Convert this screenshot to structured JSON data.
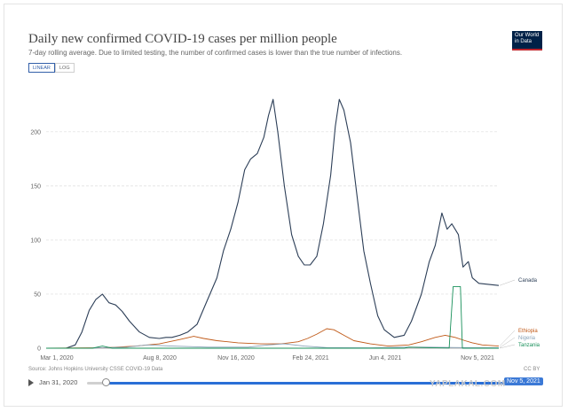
{
  "title": "Daily new confirmed COVID-19 cases per million people",
  "subtitle": "7-day rolling average. Due to limited testing, the number of confirmed cases is lower than the true number of infections.",
  "logo_text": [
    "Our World",
    "in Data"
  ],
  "toggles": {
    "linear": "LINEAR",
    "log": "LOG",
    "active": "linear"
  },
  "source": "Source: Johns Hopkins University CSSE COVID-19 Data",
  "license": "CC BY",
  "timeline": {
    "start": "Jan 31, 2020",
    "end": "Nov 5, 2021"
  },
  "watermark": "YAPLAKAL.COM",
  "colors": {
    "Canada": "#2c3e57",
    "Ethiopia": "#c05917",
    "Nigeria": "#8aa3b8",
    "Tanzania": "#18905a"
  },
  "chart_data": {
    "type": "line",
    "title": "Daily new confirmed COVID-19 cases per million people",
    "xlabel": "",
    "ylabel": "",
    "x_ticks": [
      "Mar 1, 2020",
      "Aug 8, 2020",
      "Nov 16, 2020",
      "Feb 24, 2021",
      "Jun 4, 2021",
      "Nov 5, 2021"
    ],
    "x_range": [
      "2020-01-31",
      "2021-12-15"
    ],
    "ylim": [
      0,
      240
    ],
    "y_ticks": [
      0,
      50,
      100,
      150,
      200
    ],
    "grid": "horizontal dashed",
    "legend": "line-end labels, right",
    "series": [
      {
        "name": "Canada",
        "points": [
          [
            "2020-01-31",
            0
          ],
          [
            "2020-03-01",
            0
          ],
          [
            "2020-03-15",
            3
          ],
          [
            "2020-03-25",
            15
          ],
          [
            "2020-04-05",
            35
          ],
          [
            "2020-04-15",
            45
          ],
          [
            "2020-04-25",
            50
          ],
          [
            "2020-05-05",
            42
          ],
          [
            "2020-05-15",
            40
          ],
          [
            "2020-05-25",
            34
          ],
          [
            "2020-06-05",
            25
          ],
          [
            "2020-06-20",
            15
          ],
          [
            "2020-07-05",
            10
          ],
          [
            "2020-07-20",
            9
          ],
          [
            "2020-07-30",
            10
          ],
          [
            "2020-08-08",
            10
          ],
          [
            "2020-08-20",
            12
          ],
          [
            "2020-09-01",
            15
          ],
          [
            "2020-09-15",
            22
          ],
          [
            "2020-10-01",
            45
          ],
          [
            "2020-10-15",
            65
          ],
          [
            "2020-10-25",
            90
          ],
          [
            "2020-11-05",
            110
          ],
          [
            "2020-11-16",
            135
          ],
          [
            "2020-11-26",
            165
          ],
          [
            "2020-12-05",
            175
          ],
          [
            "2020-12-15",
            180
          ],
          [
            "2020-12-25",
            195
          ],
          [
            "2021-01-01",
            215
          ],
          [
            "2021-01-08",
            230
          ],
          [
            "2021-01-15",
            200
          ],
          [
            "2021-01-25",
            150
          ],
          [
            "2021-02-05",
            105
          ],
          [
            "2021-02-15",
            85
          ],
          [
            "2021-02-24",
            77
          ],
          [
            "2021-03-05",
            77
          ],
          [
            "2021-03-15",
            85
          ],
          [
            "2021-03-25",
            115
          ],
          [
            "2021-04-05",
            160
          ],
          [
            "2021-04-12",
            205
          ],
          [
            "2021-04-18",
            230
          ],
          [
            "2021-04-25",
            220
          ],
          [
            "2021-05-05",
            190
          ],
          [
            "2021-05-15",
            140
          ],
          [
            "2021-05-25",
            90
          ],
          [
            "2021-06-04",
            60
          ],
          [
            "2021-06-15",
            30
          ],
          [
            "2021-06-25",
            17
          ],
          [
            "2021-07-10",
            10
          ],
          [
            "2021-07-25",
            12
          ],
          [
            "2021-08-05",
            25
          ],
          [
            "2021-08-20",
            50
          ],
          [
            "2021-09-01",
            80
          ],
          [
            "2021-09-10",
            95
          ],
          [
            "2021-09-20",
            125
          ],
          [
            "2021-09-28",
            110
          ],
          [
            "2021-10-05",
            115
          ],
          [
            "2021-10-15",
            105
          ],
          [
            "2021-10-22",
            75
          ],
          [
            "2021-10-30",
            80
          ],
          [
            "2021-11-05",
            65
          ],
          [
            "2021-11-15",
            60
          ],
          [
            "2021-12-15",
            58
          ]
        ]
      },
      {
        "name": "Ethiopia",
        "points": [
          [
            "2020-01-31",
            0
          ],
          [
            "2020-05-01",
            0.5
          ],
          [
            "2020-06-15",
            2
          ],
          [
            "2020-07-20",
            4
          ],
          [
            "2020-08-20",
            8
          ],
          [
            "2020-09-10",
            11
          ],
          [
            "2020-09-25",
            9
          ],
          [
            "2020-10-15",
            7
          ],
          [
            "2020-11-16",
            5
          ],
          [
            "2020-12-20",
            4
          ],
          [
            "2021-01-20",
            4
          ],
          [
            "2021-02-15",
            6
          ],
          [
            "2021-03-01",
            9
          ],
          [
            "2021-03-15",
            13
          ],
          [
            "2021-03-30",
            18
          ],
          [
            "2021-04-10",
            17
          ],
          [
            "2021-04-25",
            12
          ],
          [
            "2021-05-10",
            7
          ],
          [
            "2021-06-04",
            4
          ],
          [
            "2021-07-01",
            2
          ],
          [
            "2021-08-01",
            3
          ],
          [
            "2021-08-20",
            6
          ],
          [
            "2021-09-10",
            10
          ],
          [
            "2021-09-25",
            12
          ],
          [
            "2021-10-10",
            10
          ],
          [
            "2021-10-25",
            7
          ],
          [
            "2021-11-05",
            5
          ],
          [
            "2021-11-20",
            3
          ],
          [
            "2021-12-15",
            2
          ]
        ]
      },
      {
        "name": "Nigeria",
        "points": [
          [
            "2020-01-31",
            0
          ],
          [
            "2020-04-01",
            0.1
          ],
          [
            "2020-06-01",
            1
          ],
          [
            "2020-07-01",
            3
          ],
          [
            "2020-08-08",
            2
          ],
          [
            "2020-10-01",
            1
          ],
          [
            "2020-12-01",
            1
          ],
          [
            "2021-01-01",
            3
          ],
          [
            "2021-01-25",
            4
          ],
          [
            "2021-02-24",
            2
          ],
          [
            "2021-04-01",
            0.5
          ],
          [
            "2021-06-04",
            0.3
          ],
          [
            "2021-08-01",
            1
          ],
          [
            "2021-09-01",
            1
          ],
          [
            "2021-11-05",
            0.4
          ],
          [
            "2021-12-15",
            0.5
          ]
        ]
      },
      {
        "name": "Tanzania",
        "points": [
          [
            "2020-01-31",
            0
          ],
          [
            "2020-04-10",
            0
          ],
          [
            "2020-04-25",
            2
          ],
          [
            "2020-05-10",
            0
          ],
          [
            "2021-07-25",
            0
          ],
          [
            "2021-08-01",
            1
          ],
          [
            "2021-09-01",
            0.5
          ],
          [
            "2021-10-01",
            0.2
          ],
          [
            "2021-10-07",
            57
          ],
          [
            "2021-10-18",
            57
          ],
          [
            "2021-10-21",
            0
          ],
          [
            "2021-12-15",
            0
          ]
        ]
      }
    ]
  }
}
